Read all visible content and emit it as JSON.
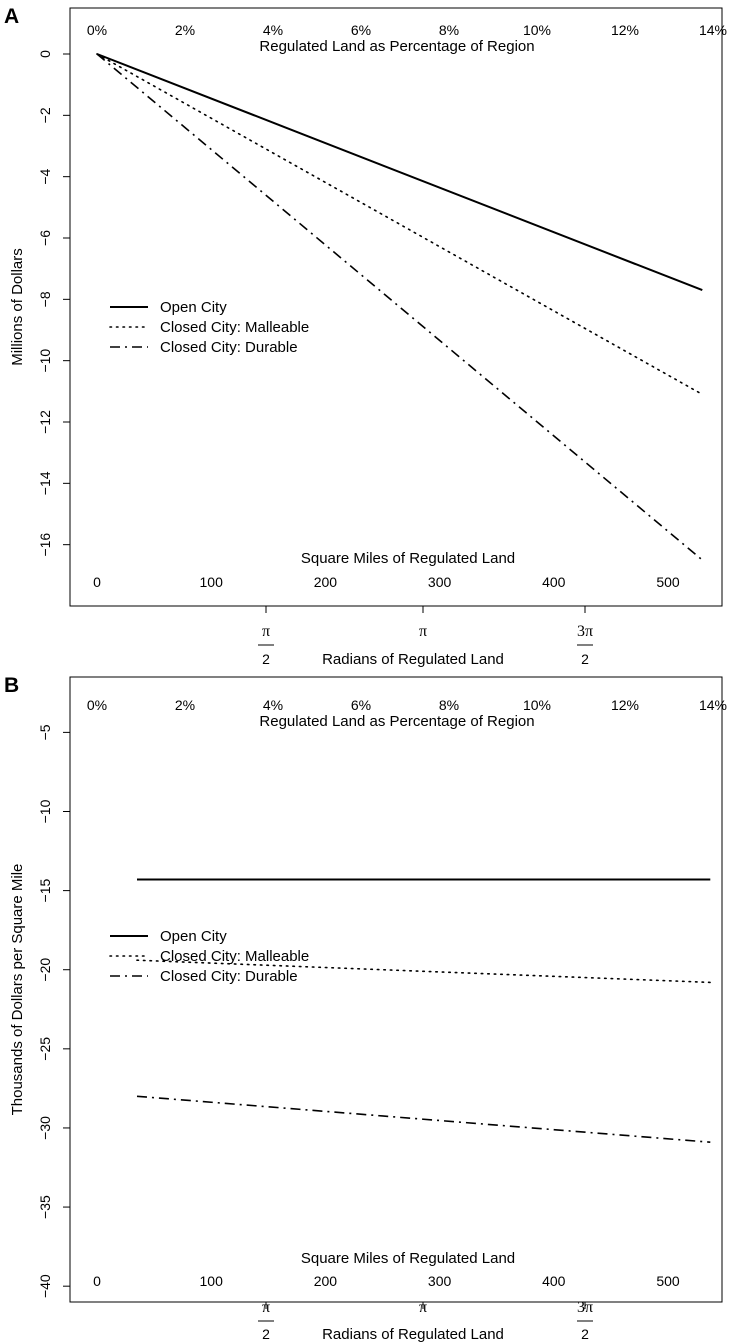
{
  "chart_data": [
    {
      "panel": "A",
      "type": "line",
      "ylabel": "Millions of Dollars",
      "ylim": [
        -18.0,
        1.5
      ],
      "y_ticks": [
        0,
        -2,
        -4,
        -6,
        -8,
        -10,
        -12,
        -14,
        -16
      ],
      "top_axis": {
        "label": "Regulated Land as Percentage of Region",
        "ticks": [
          "0%",
          "2%",
          "4%",
          "6%",
          "8%",
          "10%",
          "12%",
          "14%"
        ]
      },
      "inner_axis": {
        "label": "Square Miles of Regulated Land",
        "ticks": [
          "0",
          "100",
          "200",
          "300",
          "400",
          "500"
        ]
      },
      "bottom_axis": {
        "label": "Radians of Regulated Land",
        "ticks": [
          {
            "num": "π",
            "den": "2"
          },
          {
            "num": "π",
            "den": ""
          },
          {
            "num": "3π",
            "den": "2"
          }
        ]
      },
      "legend_position": "middle-left",
      "series": [
        {
          "name": "Open City",
          "style": "solid",
          "x": [
            0,
            530
          ],
          "y": [
            0,
            -7.7
          ]
        },
        {
          "name": "Closed City: Malleable",
          "style": "dotted",
          "x": [
            0,
            530
          ],
          "y": [
            0,
            -11.1
          ]
        },
        {
          "name": "Closed City: Durable",
          "style": "dashdot",
          "x": [
            0,
            530
          ],
          "y": [
            0,
            -16.5
          ]
        }
      ]
    },
    {
      "panel": "B",
      "type": "line",
      "ylabel": "Thousands of Dollars per Square Mile",
      "ylim": [
        -41.0,
        -1.5
      ],
      "y_ticks": [
        -5,
        -10,
        -15,
        -20,
        -25,
        -30,
        -35,
        -40
      ],
      "top_axis": {
        "label": "Regulated Land as Percentage of Region",
        "ticks": [
          "0%",
          "2%",
          "4%",
          "6%",
          "8%",
          "10%",
          "12%",
          "14%"
        ]
      },
      "inner_axis": {
        "label": "Square Miles of Regulated Land",
        "ticks": [
          "0",
          "100",
          "200",
          "300",
          "400",
          "500"
        ]
      },
      "bottom_axis": {
        "label": "Radians of Regulated Land",
        "ticks": [
          {
            "num": "π",
            "den": "2"
          },
          {
            "num": "π",
            "den": ""
          },
          {
            "num": "3π",
            "den": "2"
          }
        ]
      },
      "legend_position": "middle-left",
      "series": [
        {
          "name": "Open City",
          "style": "solid",
          "x": [
            35,
            537
          ],
          "y": [
            -14.3,
            -14.3
          ]
        },
        {
          "name": "Closed City: Malleable",
          "style": "dotted",
          "x": [
            35,
            537
          ],
          "y": [
            -19.4,
            -20.8
          ]
        },
        {
          "name": "Closed City: Durable",
          "style": "dashdot",
          "x": [
            35,
            537
          ],
          "y": [
            -28.0,
            -30.9
          ]
        }
      ]
    }
  ]
}
